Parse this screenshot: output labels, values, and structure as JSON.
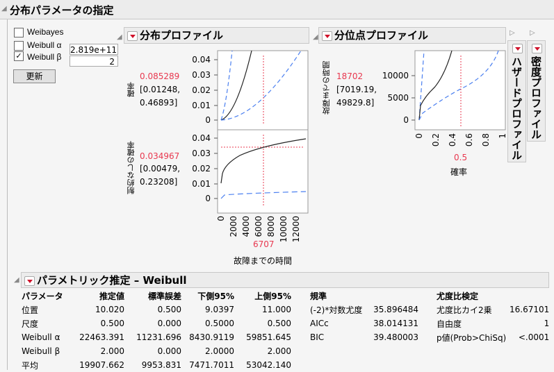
{
  "title": "分布パラメータの指定",
  "params": {
    "weibayes": {
      "label": "Weibayes",
      "checked": false
    },
    "alpha": {
      "label": "Weibull α",
      "checked": false,
      "value": "2.819e+11"
    },
    "beta": {
      "label": "Weibull β",
      "checked": true,
      "value": "2"
    },
    "update_label": "更新"
  },
  "dist_profile": {
    "title": "分布プロファイル",
    "top": {
      "ylabel": "確率",
      "value": "0.085289",
      "ci1": "[0.01248,",
      "ci2": "0.46893]",
      "yticks": [
        "0.04",
        "0.03",
        "0.02",
        "0.01",
        "0"
      ]
    },
    "bottom": {
      "ylabel": "制約なしの確率",
      "value": "0.034967",
      "ci1": "[0.00479,",
      "ci2": "0.23208]",
      "yticks": [
        "0.04",
        "0.03",
        "0.02",
        "0.01",
        "0"
      ]
    },
    "xticks": [
      "0",
      "2000",
      "4000",
      "6000",
      "8000",
      "10000",
      "12000"
    ],
    "xvalue": "6707",
    "xlabel": "故障までの時間"
  },
  "quantile_profile": {
    "title": "分位点プロファイル",
    "ylabel": "故障までの時間",
    "value": "18702",
    "ci1": "[7019.19,",
    "ci2": "49829.8]",
    "yticks": [
      "10000",
      "5000",
      "0"
    ],
    "xticks": [
      "0",
      "0.2",
      "0.4",
      "0.6",
      "0.8",
      "1"
    ],
    "xvalue": "0.5",
    "xlabel": "確率"
  },
  "hazard_profile": {
    "title": "ハザードプロファイル"
  },
  "density_profile": {
    "title": "密度プロファイル"
  },
  "colors": {
    "accent_red": "#e8384f",
    "ci_blue": "#4a7ff0"
  },
  "estimates": {
    "title": "パラメトリック推定 – Weibull",
    "headers": [
      "パラメータ",
      "推定値",
      "標準誤差",
      "下側95%",
      "上側95%"
    ],
    "rows": [
      [
        "位置",
        "10.020",
        "0.500",
        "9.0397",
        "11.000"
      ],
      [
        "尺度",
        "0.500",
        "0.000",
        "0.5000",
        "0.500"
      ],
      [
        "Weibull α",
        "22463.391",
        "11231.696",
        "8430.9119",
        "59851.645"
      ],
      [
        "Weibull β",
        "2.000",
        "0.000",
        "2.0000",
        "2.000"
      ],
      [
        "平均",
        "19907.662",
        "9953.831",
        "7471.7011",
        "53042.140"
      ]
    ],
    "criteria": {
      "header": "規準",
      "rows": [
        [
          "(-2)*対数尤度",
          "35.896484"
        ],
        [
          "AICc",
          "38.014131"
        ],
        [
          "BIC",
          "39.480003"
        ]
      ]
    },
    "lr_test": {
      "header": "尤度比検定",
      "rows": [
        [
          "尤度比カイ2乗",
          "16.67101"
        ],
        [
          "自由度",
          "1"
        ],
        [
          "p値(Prob>ChiSq)",
          "<.0001"
        ]
      ]
    }
  }
}
